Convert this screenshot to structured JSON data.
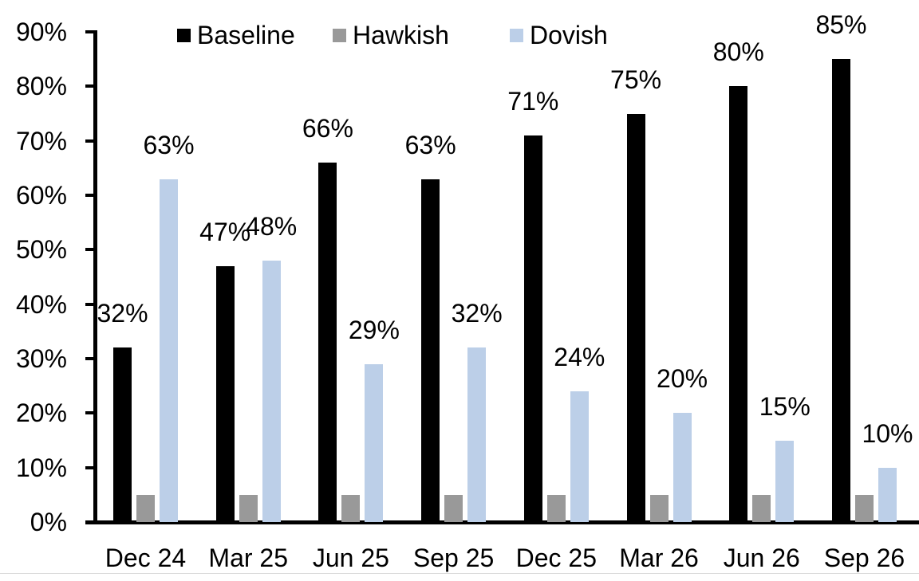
{
  "chart_data": {
    "type": "bar",
    "title": "",
    "categories": [
      "Dec 24",
      "Mar 25",
      "Jun 25",
      "Sep 25",
      "Dec 25",
      "Mar 26",
      "Jun 26",
      "Sep 26"
    ],
    "series": [
      {
        "name": "Baseline",
        "color": "#000000",
        "values": [
          32,
          47,
          66,
          63,
          71,
          75,
          80,
          85
        ],
        "data_labels": [
          "32%",
          "47%",
          "66%",
          "63%",
          "71%",
          "75%",
          "80%",
          "85%"
        ]
      },
      {
        "name": "Hawkish",
        "color": "#999999",
        "values": [
          5,
          5,
          5,
          5,
          5,
          5,
          5,
          5
        ],
        "data_labels": []
      },
      {
        "name": "Dovish",
        "color": "#BCCFE8",
        "values": [
          63,
          48,
          29,
          32,
          24,
          20,
          15,
          10
        ],
        "data_labels": [
          "63%",
          "48%",
          "29%",
          "32%",
          "24%",
          "20%",
          "15%",
          "10%"
        ]
      }
    ],
    "xlabel": "",
    "ylabel": "",
    "ylim": [
      0,
      90
    ],
    "ytick_step": 10,
    "ytick_labels": [
      "0%",
      "10%",
      "20%",
      "30%",
      "40%",
      "50%",
      "60%",
      "70%",
      "80%",
      "90%"
    ],
    "legend_position": "top",
    "legend_labels": [
      "Baseline",
      "Hawkish",
      "Dovish"
    ],
    "grid": false,
    "axis_color": "#000000",
    "background_color": "#FFFFFF"
  }
}
